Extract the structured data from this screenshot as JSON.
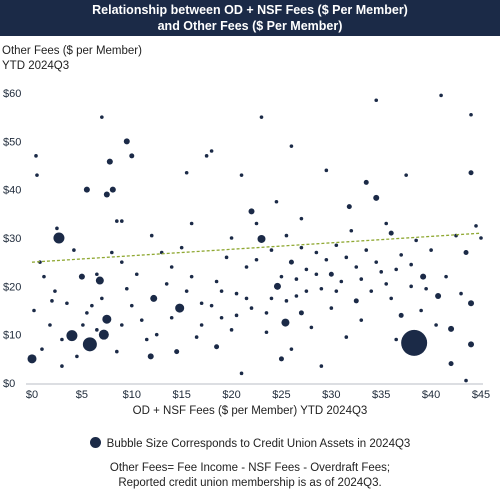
{
  "title_lines": [
    "Relationship between OD + NSF Fees ($ Per Member)",
    "and Other Fees ($ Per Member)"
  ],
  "ylabel_lines": [
    "Other Fees ($ per Member)",
    "YTD 2024Q3"
  ],
  "xlabel": "OD + NSF Fees ($ per Member) YTD 2024Q3",
  "legend_text": "Bubble Size Corresponds to Credit Union Assets in 2024Q3",
  "footnote_lines": [
    "Other Fees= Fee Income - NSF Fees - Overdraft Fees;",
    "Reported credit union membership is as of 2024Q3."
  ],
  "chart_data": {
    "type": "scatter",
    "title": "Relationship between OD + NSF Fees ($ Per Member) and Other Fees ($ Per Member)",
    "xlabel": "OD + NSF Fees ($ per Member) YTD 2024Q3",
    "ylabel": "Other Fees ($ per Member) YTD 2024Q3",
    "xlim": [
      0,
      45
    ],
    "ylim": [
      0,
      60
    ],
    "x_ticks": [
      "$0",
      "$5",
      "$10",
      "$15",
      "$20",
      "$25",
      "$30",
      "$35",
      "$40",
      "$45"
    ],
    "y_ticks": [
      "$0",
      "$10",
      "$20",
      "$30",
      "$40",
      "$50",
      "$60"
    ],
    "grid": false,
    "marker_color": "#1b2a47",
    "trendline": {
      "color": "#8fa832",
      "style": "dashed",
      "x": [
        0,
        45
      ],
      "y": [
        25.0,
        31.0
      ]
    },
    "points": [
      {
        "x": 38.3,
        "y": 8.3,
        "size": 13
      },
      {
        "x": 5.8,
        "y": 8.0,
        "size": 7
      },
      {
        "x": 2.7,
        "y": 30.0,
        "size": 5.5
      },
      {
        "x": 4.0,
        "y": 9.8,
        "size": 5.5
      },
      {
        "x": 7.2,
        "y": 10.0,
        "size": 5
      },
      {
        "x": 7.5,
        "y": 13.2,
        "size": 4.5
      },
      {
        "x": 14.8,
        "y": 15.5,
        "size": 4.5
      },
      {
        "x": 0.0,
        "y": 5.0,
        "size": 4.5
      },
      {
        "x": 6.8,
        "y": 21.2,
        "size": 4
      },
      {
        "x": 23.0,
        "y": 29.8,
        "size": 4
      },
      {
        "x": 25.4,
        "y": 12.5,
        "size": 4
      },
      {
        "x": 24.6,
        "y": 20.0,
        "size": 3.5
      },
      {
        "x": 12.2,
        "y": 17.5,
        "size": 3.5
      },
      {
        "x": 11.9,
        "y": 5.5,
        "size": 3
      },
      {
        "x": 9.5,
        "y": 50.0,
        "size": 3
      },
      {
        "x": 8.1,
        "y": 40.0,
        "size": 3
      },
      {
        "x": 7.5,
        "y": 39.0,
        "size": 3
      },
      {
        "x": 7.8,
        "y": 45.8,
        "size": 3
      },
      {
        "x": 5.5,
        "y": 40.0,
        "size": 3
      },
      {
        "x": 5.0,
        "y": 22.0,
        "size": 3
      },
      {
        "x": 22.0,
        "y": 35.5,
        "size": 3
      },
      {
        "x": 34.5,
        "y": 38.3,
        "size": 3
      },
      {
        "x": 42.0,
        "y": 11.2,
        "size": 3
      },
      {
        "x": 44.0,
        "y": 8.0,
        "size": 3
      },
      {
        "x": 40.7,
        "y": 18.0,
        "size": 3
      },
      {
        "x": 44.0,
        "y": 16.5,
        "size": 3
      },
      {
        "x": 39.2,
        "y": 22.0,
        "size": 3
      },
      {
        "x": 42.0,
        "y": 4.0,
        "size": 2.5
      },
      {
        "x": 36.0,
        "y": 31.0,
        "size": 2.5
      },
      {
        "x": 26.0,
        "y": 25.0,
        "size": 2.5
      },
      {
        "x": 30.0,
        "y": 22.5,
        "size": 2.5
      },
      {
        "x": 27.0,
        "y": 14.5,
        "size": 2.5
      },
      {
        "x": 25.0,
        "y": 5.0,
        "size": 2.5
      },
      {
        "x": 18.5,
        "y": 7.5,
        "size": 2.5
      },
      {
        "x": 14.5,
        "y": 6.5,
        "size": 2.5
      },
      {
        "x": 10.0,
        "y": 47.0,
        "size": 2.5
      },
      {
        "x": 44.0,
        "y": 43.5,
        "size": 2.5
      },
      {
        "x": 43.5,
        "y": 27.0,
        "size": 2.5
      },
      {
        "x": 32.5,
        "y": 17.0,
        "size": 2.5
      },
      {
        "x": 31.8,
        "y": 36.5,
        "size": 2.5
      },
      {
        "x": 33.5,
        "y": 41.5,
        "size": 2.5
      },
      {
        "x": 37.0,
        "y": 14.0,
        "size": 2.5
      },
      {
        "x": 0.4,
        "y": 47.0,
        "size": 1.8
      },
      {
        "x": 0.5,
        "y": 43.0,
        "size": 1.8
      },
      {
        "x": 0.2,
        "y": 15.0,
        "size": 1.8
      },
      {
        "x": 0.8,
        "y": 25.0,
        "size": 1.8
      },
      {
        "x": 1.2,
        "y": 22.0,
        "size": 1.8
      },
      {
        "x": 1.8,
        "y": 12.0,
        "size": 1.8
      },
      {
        "x": 2.3,
        "y": 19.0,
        "size": 1.8
      },
      {
        "x": 1.0,
        "y": 7.0,
        "size": 1.8
      },
      {
        "x": 3.5,
        "y": 16.5,
        "size": 1.8
      },
      {
        "x": 4.2,
        "y": 27.5,
        "size": 1.8
      },
      {
        "x": 4.5,
        "y": 5.5,
        "size": 1.8
      },
      {
        "x": 5.1,
        "y": 12.0,
        "size": 1.8
      },
      {
        "x": 6.0,
        "y": 16.0,
        "size": 1.8
      },
      {
        "x": 6.5,
        "y": 22.5,
        "size": 1.8
      },
      {
        "x": 7.0,
        "y": 55.0,
        "size": 1.8
      },
      {
        "x": 8.5,
        "y": 33.5,
        "size": 1.8
      },
      {
        "x": 9.0,
        "y": 33.5,
        "size": 1.8
      },
      {
        "x": 9.5,
        "y": 19.5,
        "size": 1.8
      },
      {
        "x": 9.0,
        "y": 12.0,
        "size": 1.8
      },
      {
        "x": 8.5,
        "y": 6.5,
        "size": 1.8
      },
      {
        "x": 10.5,
        "y": 22.5,
        "size": 1.8
      },
      {
        "x": 11.0,
        "y": 13.0,
        "size": 1.8
      },
      {
        "x": 12.0,
        "y": 30.5,
        "size": 1.8
      },
      {
        "x": 13.0,
        "y": 27.0,
        "size": 1.8
      },
      {
        "x": 12.5,
        "y": 10.0,
        "size": 1.8
      },
      {
        "x": 13.5,
        "y": 20.5,
        "size": 1.8
      },
      {
        "x": 14.0,
        "y": 24.0,
        "size": 1.8
      },
      {
        "x": 15.0,
        "y": 28.0,
        "size": 1.8
      },
      {
        "x": 15.5,
        "y": 43.5,
        "size": 1.8
      },
      {
        "x": 16.0,
        "y": 22.0,
        "size": 1.8
      },
      {
        "x": 16.5,
        "y": 9.5,
        "size": 1.8
      },
      {
        "x": 17.0,
        "y": 16.5,
        "size": 1.8
      },
      {
        "x": 17.5,
        "y": 47.0,
        "size": 1.8
      },
      {
        "x": 18.0,
        "y": 48.0,
        "size": 1.8
      },
      {
        "x": 18.5,
        "y": 21.0,
        "size": 1.8
      },
      {
        "x": 19.0,
        "y": 13.5,
        "size": 1.8
      },
      {
        "x": 19.5,
        "y": 26.0,
        "size": 1.8
      },
      {
        "x": 20.0,
        "y": 11.0,
        "size": 1.8
      },
      {
        "x": 20.5,
        "y": 18.5,
        "size": 1.8
      },
      {
        "x": 21.0,
        "y": 43.0,
        "size": 1.8
      },
      {
        "x": 21.5,
        "y": 24.0,
        "size": 1.8
      },
      {
        "x": 22.0,
        "y": 15.5,
        "size": 1.8
      },
      {
        "x": 22.5,
        "y": 33.0,
        "size": 1.8
      },
      {
        "x": 23.0,
        "y": 55.0,
        "size": 1.8
      },
      {
        "x": 23.5,
        "y": 10.5,
        "size": 1.8
      },
      {
        "x": 24.0,
        "y": 17.5,
        "size": 1.8
      },
      {
        "x": 24.5,
        "y": 37.5,
        "size": 1.8
      },
      {
        "x": 25.0,
        "y": 22.0,
        "size": 1.8
      },
      {
        "x": 25.5,
        "y": 30.5,
        "size": 1.8
      },
      {
        "x": 26.0,
        "y": 49.0,
        "size": 1.8
      },
      {
        "x": 26.5,
        "y": 18.0,
        "size": 1.8
      },
      {
        "x": 27.0,
        "y": 34.0,
        "size": 1.8
      },
      {
        "x": 27.5,
        "y": 23.5,
        "size": 1.8
      },
      {
        "x": 28.0,
        "y": 11.5,
        "size": 1.8
      },
      {
        "x": 28.5,
        "y": 27.0,
        "size": 1.8
      },
      {
        "x": 29.0,
        "y": 19.5,
        "size": 1.8
      },
      {
        "x": 29.5,
        "y": 44.0,
        "size": 1.8
      },
      {
        "x": 30.0,
        "y": 15.5,
        "size": 1.8
      },
      {
        "x": 30.5,
        "y": 28.5,
        "size": 1.8
      },
      {
        "x": 31.0,
        "y": 21.0,
        "size": 1.8
      },
      {
        "x": 31.5,
        "y": 9.5,
        "size": 1.8
      },
      {
        "x": 32.0,
        "y": 31.5,
        "size": 1.8
      },
      {
        "x": 32.5,
        "y": 24.0,
        "size": 1.8
      },
      {
        "x": 33.0,
        "y": 13.0,
        "size": 1.8
      },
      {
        "x": 33.5,
        "y": 27.5,
        "size": 1.8
      },
      {
        "x": 34.0,
        "y": 19.0,
        "size": 1.8
      },
      {
        "x": 34.5,
        "y": 58.5,
        "size": 1.8
      },
      {
        "x": 35.0,
        "y": 23.0,
        "size": 1.8
      },
      {
        "x": 35.5,
        "y": 33.0,
        "size": 1.8
      },
      {
        "x": 36.0,
        "y": 17.5,
        "size": 1.8
      },
      {
        "x": 36.5,
        "y": 9.0,
        "size": 1.8
      },
      {
        "x": 37.0,
        "y": 26.5,
        "size": 1.8
      },
      {
        "x": 37.5,
        "y": 43.0,
        "size": 1.8
      },
      {
        "x": 38.0,
        "y": 20.0,
        "size": 1.8
      },
      {
        "x": 38.5,
        "y": 29.5,
        "size": 1.8
      },
      {
        "x": 39.0,
        "y": 15.0,
        "size": 1.8
      },
      {
        "x": 40.0,
        "y": 27.5,
        "size": 1.8
      },
      {
        "x": 40.5,
        "y": 12.0,
        "size": 1.8
      },
      {
        "x": 41.0,
        "y": 59.5,
        "size": 1.8
      },
      {
        "x": 41.5,
        "y": 22.0,
        "size": 1.8
      },
      {
        "x": 42.5,
        "y": 30.5,
        "size": 1.8
      },
      {
        "x": 43.0,
        "y": 18.5,
        "size": 1.8
      },
      {
        "x": 43.5,
        "y": 0.5,
        "size": 1.8
      },
      {
        "x": 44.0,
        "y": 55.5,
        "size": 1.8
      },
      {
        "x": 44.5,
        "y": 32.5,
        "size": 1.8
      },
      {
        "x": 45.0,
        "y": 30.0,
        "size": 1.8
      },
      {
        "x": 21.0,
        "y": 2.0,
        "size": 1.8
      },
      {
        "x": 26.0,
        "y": 7.0,
        "size": 1.8
      },
      {
        "x": 29.0,
        "y": 3.5,
        "size": 1.8
      },
      {
        "x": 3.0,
        "y": 3.5,
        "size": 1.8
      },
      {
        "x": 2.5,
        "y": 32.0,
        "size": 1.8
      },
      {
        "x": 16.0,
        "y": 33.0,
        "size": 1.8
      },
      {
        "x": 20.0,
        "y": 30.0,
        "size": 1.8
      },
      {
        "x": 22.5,
        "y": 25.5,
        "size": 1.8
      },
      {
        "x": 27.5,
        "y": 19.0,
        "size": 1.8
      },
      {
        "x": 28.5,
        "y": 22.5,
        "size": 1.8
      },
      {
        "x": 26.5,
        "y": 21.5,
        "size": 1.8
      },
      {
        "x": 23.5,
        "y": 14.5,
        "size": 1.8
      },
      {
        "x": 24.0,
        "y": 27.5,
        "size": 1.8
      },
      {
        "x": 25.5,
        "y": 17.0,
        "size": 1.8
      },
      {
        "x": 27.0,
        "y": 28.0,
        "size": 1.8
      },
      {
        "x": 29.5,
        "y": 25.5,
        "size": 1.8
      },
      {
        "x": 30.5,
        "y": 19.0,
        "size": 1.8
      },
      {
        "x": 31.5,
        "y": 26.0,
        "size": 1.8
      },
      {
        "x": 33.0,
        "y": 21.5,
        "size": 1.8
      },
      {
        "x": 34.5,
        "y": 25.0,
        "size": 1.8
      },
      {
        "x": 35.5,
        "y": 20.5,
        "size": 1.8
      },
      {
        "x": 36.5,
        "y": 23.5,
        "size": 1.8
      },
      {
        "x": 38.0,
        "y": 24.5,
        "size": 1.8
      },
      {
        "x": 39.5,
        "y": 19.5,
        "size": 1.8
      },
      {
        "x": 18.0,
        "y": 16.0,
        "size": 1.8
      },
      {
        "x": 19.0,
        "y": 19.0,
        "size": 1.8
      },
      {
        "x": 20.5,
        "y": 14.0,
        "size": 1.8
      },
      {
        "x": 21.5,
        "y": 17.5,
        "size": 1.8
      },
      {
        "x": 17.0,
        "y": 12.0,
        "size": 1.8
      },
      {
        "x": 15.5,
        "y": 19.0,
        "size": 1.8
      },
      {
        "x": 14.0,
        "y": 13.5,
        "size": 1.8
      },
      {
        "x": 10.0,
        "y": 16.0,
        "size": 1.8
      },
      {
        "x": 11.5,
        "y": 9.0,
        "size": 1.8
      },
      {
        "x": 7.0,
        "y": 17.5,
        "size": 1.8
      },
      {
        "x": 6.5,
        "y": 11.0,
        "size": 1.8
      },
      {
        "x": 5.5,
        "y": 14.5,
        "size": 1.8
      },
      {
        "x": 3.0,
        "y": 9.0,
        "size": 1.8
      },
      {
        "x": 2.0,
        "y": 17.0,
        "size": 1.8
      },
      {
        "x": 8.0,
        "y": 27.0,
        "size": 1.8
      },
      {
        "x": 9.0,
        "y": 25.0,
        "size": 1.8
      }
    ]
  }
}
